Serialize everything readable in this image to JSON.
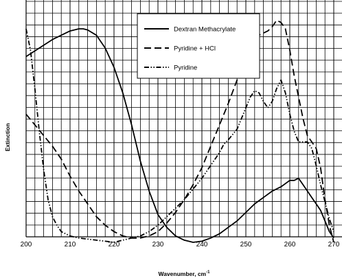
{
  "chart_data": {
    "type": "line",
    "title": "",
    "xlabel": "Wavenumber, cm",
    "xlabel_superscript": "-1",
    "ylabel": "Extinction",
    "xlim": [
      200,
      270
    ],
    "x_tick_step": 10,
    "x_minor_step": 2,
    "y_grid_lines": 20,
    "grid": true,
    "legend": "top-right",
    "x_ticks": [
      "200",
      "210",
      "220",
      "230",
      "240",
      "250",
      "260",
      "270"
    ],
    "series": [
      {
        "name": "Dextran Methacrylate",
        "style": "solid",
        "color": "#000000",
        "x": [
          200,
          203,
          206,
          208,
          210,
          212,
          213,
          214,
          216,
          218,
          220,
          222,
          224,
          226,
          228,
          230,
          232,
          234,
          236,
          238,
          240,
          242,
          244,
          246,
          248,
          250,
          252,
          254,
          256,
          258,
          260,
          261,
          262,
          263,
          264,
          265,
          266,
          267,
          268,
          269,
          270
        ],
        "y": [
          0.87,
          0.91,
          0.95,
          0.97,
          0.99,
          1.0,
          1.0,
          0.995,
          0.97,
          0.91,
          0.82,
          0.7,
          0.55,
          0.38,
          0.24,
          0.13,
          0.07,
          0.03,
          0.01,
          0.0,
          0.005,
          0.02,
          0.04,
          0.07,
          0.1,
          0.14,
          0.18,
          0.21,
          0.24,
          0.26,
          0.29,
          0.29,
          0.3,
          0.27,
          0.24,
          0.21,
          0.18,
          0.15,
          0.1,
          0.05,
          0.02
        ]
      },
      {
        "name": "Pyridine + HCl",
        "style": "dashed",
        "color": "#000000",
        "x": [
          200,
          202,
          204,
          206,
          208,
          210,
          212,
          214,
          216,
          218,
          220,
          222,
          224,
          226,
          228,
          230,
          232,
          234,
          236,
          238,
          240,
          242,
          244,
          246,
          248,
          250,
          251,
          252,
          253,
          254,
          255,
          256,
          257,
          258,
          259,
          260,
          261,
          262,
          263,
          264,
          265,
          266,
          267,
          268,
          269,
          270
        ],
        "y": [
          0.6,
          0.55,
          0.5,
          0.45,
          0.39,
          0.31,
          0.24,
          0.18,
          0.12,
          0.08,
          0.05,
          0.03,
          0.02,
          0.02,
          0.03,
          0.05,
          0.09,
          0.14,
          0.2,
          0.27,
          0.35,
          0.45,
          0.55,
          0.65,
          0.76,
          0.87,
          0.92,
          0.95,
          0.97,
          0.98,
          0.99,
          1.01,
          1.04,
          1.03,
          1.0,
          0.9,
          0.78,
          0.68,
          0.58,
          0.5,
          0.47,
          0.44,
          0.35,
          0.2,
          0.08,
          0.0
        ]
      },
      {
        "name": "Pyridine",
        "style": "dash-dot-dot",
        "color": "#000000",
        "x": [
          200,
          201,
          202,
          203,
          204,
          205,
          206,
          207,
          208,
          210,
          212,
          214,
          216,
          218,
          220,
          222,
          224,
          226,
          228,
          230,
          232,
          234,
          236,
          238,
          240,
          242,
          244,
          245,
          246,
          248,
          250,
          251,
          252,
          253,
          254,
          255,
          256,
          257,
          258,
          259,
          260,
          261,
          262,
          263,
          264,
          265,
          266,
          267,
          268,
          269,
          270
        ],
        "y": [
          1.0,
          0.9,
          0.72,
          0.52,
          0.34,
          0.2,
          0.12,
          0.08,
          0.05,
          0.03,
          0.02,
          0.015,
          0.01,
          0.005,
          0.0,
          0.01,
          0.02,
          0.03,
          0.05,
          0.08,
          0.12,
          0.16,
          0.2,
          0.25,
          0.3,
          0.36,
          0.42,
          0.46,
          0.48,
          0.53,
          0.63,
          0.68,
          0.71,
          0.7,
          0.66,
          0.63,
          0.66,
          0.72,
          0.76,
          0.7,
          0.6,
          0.52,
          0.47,
          0.47,
          0.47,
          0.44,
          0.36,
          0.27,
          0.19,
          0.11,
          0.05
        ]
      }
    ]
  }
}
